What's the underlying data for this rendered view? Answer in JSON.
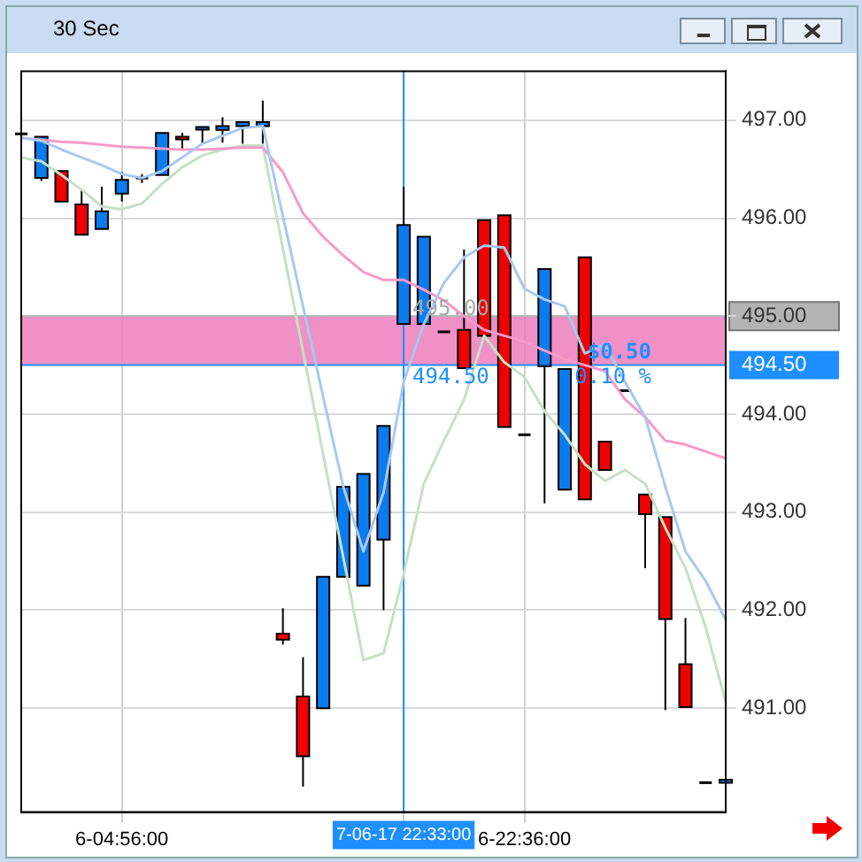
{
  "chart_data": {
    "type": "candlestick",
    "title": "30 Sec",
    "categories": [
      null,
      null,
      null,
      null,
      null,
      "6-04:56:00",
      null,
      null,
      null,
      null,
      null,
      null,
      null,
      null,
      null,
      null,
      null,
      null,
      null,
      "7-06-17 22:33:00",
      null,
      null,
      null,
      null,
      null,
      "6-22:36:00",
      null,
      null,
      null,
      null,
      null,
      null,
      null,
      null,
      null,
      null
    ],
    "ohlc": [
      [
        496.86,
        496.86,
        496.86,
        496.86
      ],
      [
        496.41,
        496.83,
        496.38,
        496.83
      ],
      [
        496.48,
        496.48,
        496.17,
        496.17
      ],
      [
        496.14,
        496.3,
        495.83,
        495.83
      ],
      [
        495.89,
        496.32,
        495.89,
        496.07
      ],
      [
        496.25,
        496.47,
        496.17,
        496.39
      ],
      [
        496.41,
        496.45,
        496.36,
        496.41
      ],
      [
        496.44,
        496.87,
        496.44,
        496.87
      ],
      [
        496.83,
        496.87,
        496.71,
        496.81
      ],
      [
        496.91,
        496.93,
        496.76,
        496.93
      ],
      [
        496.9,
        497.03,
        496.77,
        496.94
      ],
      [
        496.94,
        496.98,
        496.76,
        496.98
      ],
      [
        496.94,
        497.2,
        496.76,
        496.98
      ],
      [
        491.76,
        492.02,
        491.65,
        491.7
      ],
      [
        491.12,
        491.52,
        490.2,
        490.51
      ],
      [
        491.0,
        492.34,
        491.0,
        492.34
      ],
      [
        492.34,
        493.26,
        492.34,
        493.26
      ],
      [
        492.25,
        493.39,
        492.25,
        493.39
      ],
      [
        492.72,
        493.88,
        492.0,
        493.88
      ],
      [
        494.92,
        496.32,
        494.92,
        495.93
      ],
      [
        494.92,
        495.81,
        494.92,
        495.81
      ],
      [
        494.84,
        494.84,
        494.84,
        494.84
      ],
      [
        494.86,
        495.68,
        494.47,
        494.47
      ],
      [
        495.98,
        495.98,
        494.8,
        494.8
      ],
      [
        496.03,
        496.03,
        493.87,
        493.87
      ],
      [
        493.79,
        493.79,
        493.79,
        493.79
      ],
      [
        494.49,
        495.48,
        493.09,
        495.48
      ],
      [
        493.23,
        494.46,
        493.23,
        494.46
      ],
      [
        495.6,
        495.6,
        493.13,
        493.13
      ],
      [
        493.72,
        493.72,
        493.43,
        493.43
      ],
      [
        494.24,
        494.24,
        494.24,
        494.24
      ],
      [
        493.18,
        493.18,
        492.43,
        492.98
      ],
      [
        492.95,
        492.95,
        490.98,
        491.91
      ],
      [
        491.45,
        491.92,
        491.01,
        491.01
      ],
      [
        490.24,
        490.24,
        490.24,
        490.24
      ],
      [
        490.24,
        491.1,
        490.24,
        490.27
      ]
    ],
    "colors": [
      "#000000",
      "#0a7cf0",
      "#f00000",
      "#f00000",
      "#0a7cf0",
      "#0a7cf0",
      "#000000",
      "#0a7cf0",
      "#f00000",
      "#0a7cf0",
      "#0a7cf0",
      "#0a7cf0",
      "#0a7cf0",
      "#f00000",
      "#f00000",
      "#0a7cf0",
      "#0a7cf0",
      "#0a7cf0",
      "#0a7cf0",
      "#0a7cf0",
      "#0a7cf0",
      "#000000",
      "#f00000",
      "#f00000",
      "#f00000",
      "#000000",
      "#0a7cf0",
      "#0a7cf0",
      "#f00000",
      "#f00000",
      "#000000",
      "#f00000",
      "#f00000",
      "#f00000",
      "#000000",
      "#0a7cf0"
    ],
    "series": [
      {
        "type": "line",
        "color": "#a9c8f0",
        "values": [
          496.82,
          496.79,
          496.7,
          496.62,
          496.54,
          496.45,
          496.41,
          496.48,
          496.62,
          496.76,
          496.84,
          496.92,
          496.94,
          496.02,
          495.1,
          494.18,
          493.26,
          492.6,
          493.2,
          494.33,
          494.92,
          495.34,
          495.6,
          495.72,
          495.7,
          495.28,
          495.17,
          495.1,
          494.62,
          494.71,
          494.33,
          493.97,
          493.26,
          492.6,
          492.3,
          491.9
        ]
      },
      {
        "type": "line",
        "color": "#f59ac8",
        "values": [
          496.82,
          496.8,
          496.78,
          496.77,
          496.75,
          496.73,
          496.72,
          496.71,
          496.7,
          496.7,
          496.71,
          496.72,
          496.72,
          496.47,
          496.05,
          495.81,
          495.62,
          495.45,
          495.37,
          495.37,
          495.27,
          495.16,
          495.0,
          494.86,
          494.8,
          494.74,
          494.65,
          494.56,
          494.5,
          494.44,
          494.15,
          493.97,
          493.73,
          493.69,
          493.62,
          493.55
        ]
      },
      {
        "type": "line",
        "color": "#c5e0c5",
        "values": [
          496.62,
          496.58,
          496.44,
          496.29,
          496.12,
          496.09,
          496.15,
          496.35,
          496.52,
          496.64,
          496.7,
          496.74,
          496.74,
          495.69,
          494.64,
          493.59,
          492.54,
          491.49,
          491.56,
          492.37,
          493.29,
          493.73,
          494.15,
          494.8,
          494.53,
          494.38,
          494.03,
          493.79,
          493.49,
          493.32,
          493.43,
          493.29,
          492.84,
          492.43,
          491.83,
          491.06
        ]
      }
    ],
    "ylim": [
      489.94,
      497.5
    ],
    "yticks": [
      {
        "value": 491,
        "label": "491.00"
      },
      {
        "value": 492,
        "label": "492.00"
      },
      {
        "value": 493,
        "label": "493.00"
      },
      {
        "value": 494,
        "label": "494.00"
      },
      {
        "value": 495,
        "label": "495.00"
      },
      {
        "value": 496,
        "label": "496.00"
      },
      {
        "value": 497,
        "label": "497.00"
      }
    ],
    "grid": true,
    "bands": [
      {
        "axis": "y",
        "from": 494.5,
        "to": 495,
        "color": "#ec7cbd"
      }
    ],
    "ref_lines": [
      {
        "axis": "y",
        "value": 495,
        "color": "#b4b4b4"
      },
      {
        "axis": "y",
        "value": 494.5,
        "label": "494.50",
        "color": "#1e8fff"
      },
      {
        "axis": "x",
        "value": "7-06-17 22:33:00",
        "color": "#1e8fff"
      }
    ],
    "annotations": [
      "495.00",
      "494.50",
      "$0.50",
      "0.10 %"
    ]
  }
}
